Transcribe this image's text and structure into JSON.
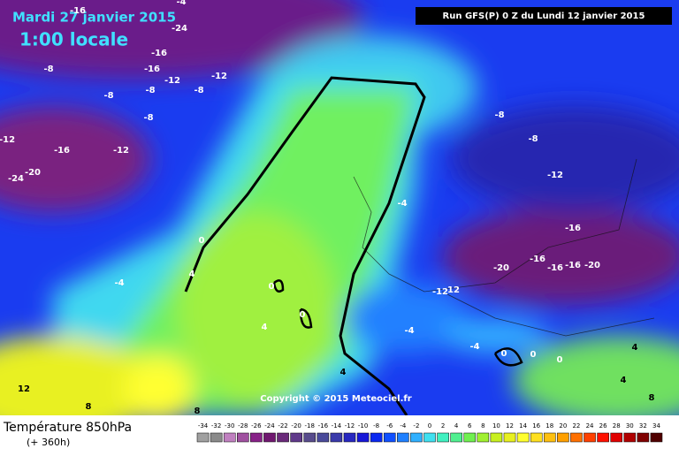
{
  "header": {
    "date": "Mardi 27 janvier 2015",
    "time": "1:00 locale",
    "run": "Run GFS(P) 0 Z du Lundi 12 janvier 2015"
  },
  "map": {
    "copyright": "Copyright © 2015 Meteociel.fr",
    "contour_labels": [
      -16,
      -4,
      -24,
      -16,
      -16,
      -8,
      -12,
      -12,
      -8,
      -8,
      -8,
      -8,
      -12,
      -16,
      -12,
      -20,
      -24,
      -8,
      -8,
      -12,
      -16,
      -20,
      -16,
      -16,
      -16,
      -20,
      -12,
      12,
      0,
      4,
      -4,
      0,
      0,
      4,
      -4,
      -4,
      -4,
      0,
      0,
      0,
      4,
      4,
      4,
      12,
      8,
      8,
      8
    ]
  },
  "legend": {
    "title": "Température 850hPa",
    "subtitle": "(+ 360h)",
    "values": [
      -34,
      -32,
      -30,
      -28,
      -26,
      -24,
      -22,
      -20,
      -18,
      -16,
      -14,
      -12,
      -10,
      -8,
      -6,
      -4,
      -2,
      0,
      2,
      4,
      6,
      8,
      10,
      12,
      14,
      16,
      18,
      20,
      22,
      24,
      26,
      28,
      30,
      32,
      34
    ],
    "colors": [
      "#a0a0a0",
      "#8a8a8a",
      "#c080c0",
      "#a050a0",
      "#882288",
      "#701870",
      "#6a2a7a",
      "#603a8a",
      "#584c8c",
      "#4a4a9a",
      "#3a3aaa",
      "#2828c0",
      "#1818d8",
      "#0a28f0",
      "#1050ff",
      "#2080ff",
      "#30b0ff",
      "#40e0f0",
      "#40f0c0",
      "#50f090",
      "#70f050",
      "#a0f030",
      "#c8f020",
      "#e8f020",
      "#ffff30",
      "#ffe020",
      "#ffc010",
      "#ffa000",
      "#ff7000",
      "#ff4000",
      "#ff1000",
      "#e00000",
      "#b00000",
      "#800000",
      "#500000"
    ]
  }
}
